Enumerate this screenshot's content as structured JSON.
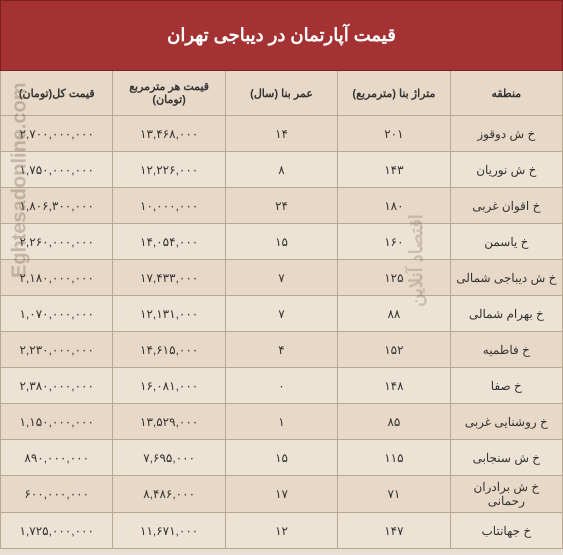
{
  "title": "قیمت آپارتمان در دیباجی تهران",
  "columns": {
    "region": "منطقه",
    "area": "متراژ بنا (مترمربع)",
    "age": "عمر بنا (سال)",
    "price_sqm": "قیمت هر مترمربع (تومان)",
    "total_price": "قیمت کل(تومان)"
  },
  "rows": [
    {
      "region": "خ ش دوقوز",
      "area": "۲۰۱",
      "age": "۱۴",
      "price_sqm": "۱۳,۴۶۸,۰۰۰",
      "total_price": "۲,۷۰۰,۰۰۰,۰۰۰"
    },
    {
      "region": "خ ش نوریان",
      "area": "۱۴۳",
      "age": "۸",
      "price_sqm": "۱۲,۲۲۶,۰۰۰",
      "total_price": "۱,۷۵۰,۰۰۰,۰۰۰"
    },
    {
      "region": "خ اقوان غربی",
      "area": "۱۸۰",
      "age": "۲۴",
      "price_sqm": "۱۰,۰۰۰,۰۰۰",
      "total_price": "۱,۸۰۶,۳۰۰,۰۰۰"
    },
    {
      "region": "خ یاسمن",
      "area": "۱۶۰",
      "age": "۱۵",
      "price_sqm": "۱۴,۰۵۴,۰۰۰",
      "total_price": "۲,۲۶۰,۰۰۰,۰۰۰"
    },
    {
      "region": "خ ش دیباجی شمالی",
      "area": "۱۲۵",
      "age": "۷",
      "price_sqm": "۱۷,۴۳۳,۰۰۰",
      "total_price": "۲,۱۸۰,۰۰۰,۰۰۰"
    },
    {
      "region": "خ بهرام شمالی",
      "area": "۸۸",
      "age": "۷",
      "price_sqm": "۱۲,۱۳۱,۰۰۰",
      "total_price": "۱,۰۷۰,۰۰۰,۰۰۰"
    },
    {
      "region": "خ فاطمیه",
      "area": "۱۵۲",
      "age": "۴",
      "price_sqm": "۱۴,۶۱۵,۰۰۰",
      "total_price": "۲,۲۳۰,۰۰۰,۰۰۰"
    },
    {
      "region": "خ صفا",
      "area": "۱۴۸",
      "age": "۰",
      "price_sqm": "۱۶,۰۸۱,۰۰۰",
      "total_price": "۲,۳۸۰,۰۰۰,۰۰۰"
    },
    {
      "region": "خ روشنایی غربی",
      "area": "۸۵",
      "age": "۱",
      "price_sqm": "۱۳,۵۲۹,۰۰۰",
      "total_price": "۱,۱۵۰,۰۰۰,۰۰۰"
    },
    {
      "region": "خ ش سنجابی",
      "area": "۱۱۵",
      "age": "۱۵",
      "price_sqm": "۷,۶۹۵,۰۰۰",
      "total_price": "۸۹۰,۰۰۰,۰۰۰"
    },
    {
      "region": "خ ش برادران رحمانی",
      "area": "۷۱",
      "age": "۱۷",
      "price_sqm": "۸,۴۸۶,۰۰۰",
      "total_price": "۶۰۰,۰۰۰,۰۰۰"
    },
    {
      "region": "خ جهانتاب",
      "area": "۱۴۷",
      "age": "۱۲",
      "price_sqm": "۱۱,۶۷۱,۰۰۰",
      "total_price": "۱,۷۲۵,۰۰۰,۰۰۰"
    }
  ],
  "watermark1": "Eghtesadonline.com",
  "watermark2": "اقتصاد آنلاین",
  "styles": {
    "title_bg": "#a43232",
    "title_color": "#ffffff",
    "header_bg": "#e8d8c8",
    "row_odd_bg": "#e8d8c8",
    "row_even_bg": "#ede3d5",
    "border_color": "#b8a890",
    "text_color": "#333333"
  }
}
